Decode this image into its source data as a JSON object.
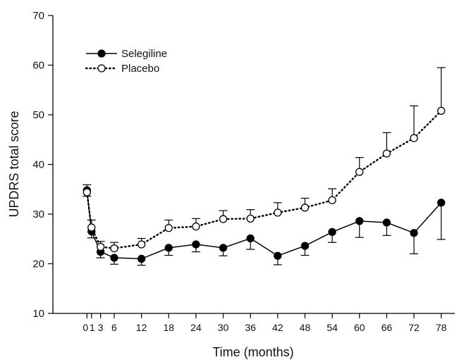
{
  "chart_data": {
    "type": "line",
    "title": "",
    "xlabel": "Time (months)",
    "ylabel": "UPDRS total score",
    "xlim": [
      -7.5,
      81
    ],
    "ylim": [
      10,
      70
    ],
    "x_ticks": [
      0,
      1,
      3,
      6,
      12,
      18,
      24,
      30,
      36,
      42,
      48,
      54,
      60,
      66,
      72,
      78
    ],
    "x_tick_labels": [
      "0",
      "1",
      "3",
      "6",
      "12",
      "18",
      "24",
      "30",
      "36",
      "42",
      "48",
      "54",
      "60",
      "66",
      "72",
      "78"
    ],
    "y_ticks": [
      10,
      20,
      30,
      40,
      50,
      60,
      70
    ],
    "y_tick_labels": [
      "10",
      "20",
      "30",
      "40",
      "50",
      "60",
      "70"
    ],
    "grid": false,
    "legend_position": "top-left",
    "error_bars": "one-sided standard error (Selegiline downward, Placebo upward)",
    "series": [
      {
        "name": "Selegiline",
        "marker": "filled-circle",
        "line_style": "solid",
        "color": "#000000",
        "x": [
          0,
          1,
          3,
          6,
          12,
          18,
          24,
          30,
          36,
          42,
          48,
          54,
          60,
          66,
          72,
          78
        ],
        "y": [
          34.8,
          26.5,
          22.4,
          21.2,
          21.0,
          23.2,
          23.9,
          23.2,
          25.1,
          21.6,
          23.6,
          26.4,
          28.6,
          28.3,
          26.2,
          32.3
        ],
        "error_low": [
          33.6,
          25.2,
          21.2,
          19.9,
          19.7,
          21.7,
          22.4,
          21.6,
          22.9,
          19.8,
          21.7,
          24.3,
          25.3,
          25.7,
          22.0,
          24.9
        ]
      },
      {
        "name": "Placebo",
        "marker": "open-circle",
        "line_style": "dotted",
        "color": "#000000",
        "x": [
          0,
          1,
          3,
          6,
          12,
          18,
          24,
          30,
          36,
          42,
          48,
          54,
          60,
          66,
          72,
          78
        ],
        "y": [
          34.4,
          27.3,
          23.4,
          23.1,
          23.9,
          27.2,
          27.5,
          29.0,
          29.1,
          30.3,
          31.3,
          32.8,
          38.5,
          42.2,
          45.3,
          50.8
        ],
        "error_high": [
          35.9,
          28.8,
          24.5,
          24.3,
          25.1,
          28.8,
          29.1,
          30.7,
          30.9,
          32.3,
          33.2,
          35.1,
          41.4,
          46.4,
          51.8,
          59.5
        ]
      }
    ]
  }
}
